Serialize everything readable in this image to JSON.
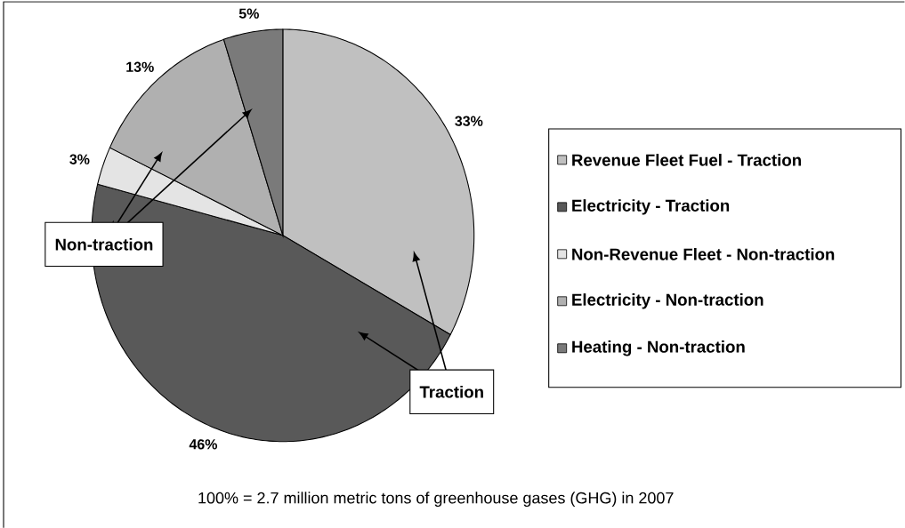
{
  "chart_data": {
    "type": "pie",
    "categories": [
      "Revenue Fleet Fuel - Traction",
      "Electricity - Traction",
      "Non-Revenue Fleet - Non-traction",
      "Electricity - Non-traction",
      "Heating - Non-traction"
    ],
    "values": [
      33,
      46,
      3,
      13,
      5
    ],
    "value_labels": [
      "33%",
      "46%",
      "3%",
      "13%",
      "5%"
    ],
    "colors": [
      "#c0c0c0",
      "#595959",
      "#e4e4e4",
      "#b0b0b0",
      "#7a7a7a"
    ],
    "legend": "right",
    "annotations": [
      "Non-traction",
      "Traction",
      "100% = 2.7 million metric tons of greenhouse gases (GHG) in 2007"
    ]
  }
}
